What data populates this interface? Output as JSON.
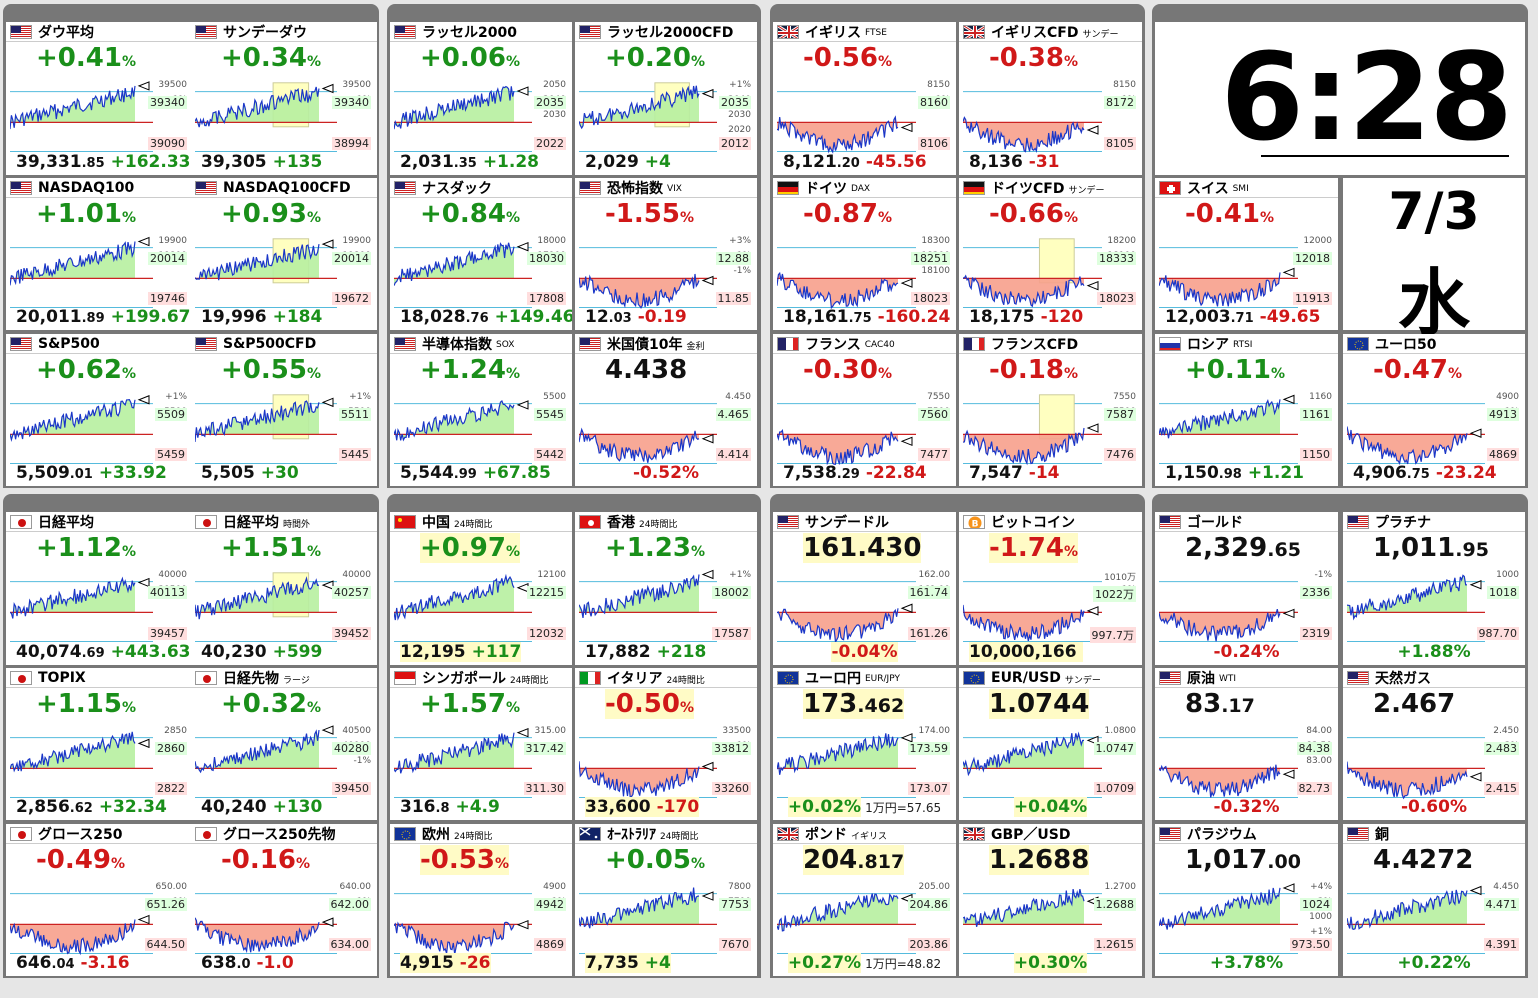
{
  "cells": [
    {
      "id": "dow",
      "title": "ダウ平均",
      "sub": "",
      "flag": "us",
      "mode": "pct",
      "pct": "+0.41",
      "dir": "up",
      "hi": "39340",
      "lo": "39090",
      "r": [
        "39500",
        "+1%"
      ],
      "price": "39,331",
      "dec": ".85",
      "chg": "+162.33",
      "cdir": "up",
      "sessions": [
        [
          0,
          1
        ],
        [
          1,
          1
        ],
        [
          1,
          1
        ],
        [
          1,
          1
        ],
        [
          1,
          0
        ],
        [
          1,
          0
        ],
        [
          1,
          0
        ],
        [
          1,
          0
        ]
      ]
    },
    {
      "id": "sdow",
      "title": "サンデーダウ",
      "sub": "",
      "flag": "us",
      "mode": "pct",
      "pct": "+0.34",
      "dir": "up",
      "hi": "39340",
      "lo": "38994",
      "r": [
        "39500",
        "+1%"
      ],
      "price": "39,305",
      "dec": "",
      "chg": "+135",
      "cdir": "up",
      "box": true,
      "sessions": []
    },
    {
      "id": "r2000",
      "title": "ラッセル2000",
      "sub": "",
      "flag": "us",
      "mode": "pct",
      "pct": "+0.06",
      "dir": "up",
      "hi": "2035",
      "lo": "2022",
      "r": [
        "2050",
        "2040",
        "2030"
      ],
      "price": "2,031",
      "dec": ".35",
      "chg": "+1.28",
      "cdir": "up"
    },
    {
      "id": "r2000c",
      "title": "ラッセル2000CFD",
      "sub": "",
      "flag": "us",
      "mode": "pct",
      "pct": "+0.20",
      "dir": "up",
      "hi": "2035",
      "lo": "2012",
      "r": [
        "+1%",
        "2040",
        "2030",
        "2020"
      ],
      "price": "2,029",
      "dec": "",
      "chg": "+4",
      "cdir": "up",
      "box": true
    },
    {
      "id": "ftse",
      "title": "イギリス",
      "sub": "FTSE",
      "flag": "uk",
      "mode": "pct",
      "pct": "-0.56",
      "dir": "down",
      "hi": "8160",
      "lo": "8106",
      "r": [
        "8150",
        "-1%"
      ],
      "price": "8,121",
      "dec": ".20",
      "chg": "-45.56",
      "cdir": "down"
    },
    {
      "id": "ftsec",
      "title": "イギリスCFD",
      "sub": "サンデー",
      "flag": "uk",
      "mode": "pct",
      "pct": "-0.38",
      "dir": "down",
      "hi": "8172",
      "lo": "8105",
      "r": [
        "8150",
        "-1%"
      ],
      "price": "8,136",
      "dec": "",
      "chg": "-31",
      "cdir": "down"
    },
    {
      "id": "ndq100",
      "title": "NASDAQ100",
      "sub": "",
      "flag": "us",
      "mode": "pct",
      "pct": "+1.01",
      "dir": "up",
      "hi": "20014",
      "lo": "19746",
      "r": [
        "19900",
        "19800"
      ],
      "price": "20,011",
      "dec": ".89",
      "chg": "+199.67",
      "cdir": "up"
    },
    {
      "id": "ndq100c",
      "title": "NASDAQ100CFD",
      "sub": "",
      "flag": "us",
      "mode": "pct",
      "pct": "+0.93",
      "dir": "up",
      "hi": "20014",
      "lo": "19672",
      "r": [
        "19900",
        "19800"
      ],
      "price": "19,996",
      "dec": "",
      "chg": "+184",
      "cdir": "up",
      "box": true
    },
    {
      "id": "nasdaq",
      "title": "ナスダック",
      "sub": "",
      "flag": "us",
      "mode": "pct",
      "pct": "+0.84",
      "dir": "up",
      "hi": "18030",
      "lo": "17808",
      "r": [
        "18000",
        "17900"
      ],
      "price": "18,028",
      "dec": ".76",
      "chg": "+149.46",
      "cdir": "up"
    },
    {
      "id": "vix",
      "title": "恐怖指数",
      "sub": "VIX",
      "flag": "us",
      "mode": "pct",
      "pct": "-1.55",
      "dir": "down",
      "hi": "12.88",
      "lo": "11.85",
      "r": [
        "+3%",
        "+1%",
        "-1%"
      ],
      "price": "12",
      "dec": ".03",
      "chg": "-0.19",
      "cdir": "down"
    },
    {
      "id": "dax",
      "title": "ドイツ",
      "sub": "DAX",
      "flag": "de",
      "mode": "pct",
      "pct": "-0.87",
      "dir": "down",
      "hi": "18251",
      "lo": "18023",
      "r": [
        "18300",
        "18200",
        "18100"
      ],
      "price": "18,161",
      "dec": ".75",
      "chg": "-160.24",
      "cdir": "down"
    },
    {
      "id": "daxc",
      "title": "ドイツCFD",
      "sub": "サンデー",
      "flag": "de",
      "mode": "pct",
      "pct": "-0.66",
      "dir": "down",
      "hi": "18333",
      "lo": "18023",
      "r": [
        "18200",
        "18100"
      ],
      "price": "18,175",
      "dec": "",
      "chg": "-120",
      "cdir": "down",
      "box": true
    },
    {
      "id": "smi",
      "title": "スイス",
      "sub": "SMI",
      "flag": "ch",
      "mode": "pct",
      "pct": "-0.41",
      "dir": "down",
      "hi": "12018",
      "lo": "11913",
      "r": [
        "12000"
      ],
      "price": "12,003",
      "dec": ".71",
      "chg": "-49.65",
      "cdir": "down"
    },
    {
      "id": "sp500",
      "title": "S&P500",
      "sub": "",
      "flag": "us",
      "mode": "pct",
      "pct": "+0.62",
      "dir": "up",
      "hi": "5509",
      "lo": "5459",
      "r": [
        "+1%",
        "5500"
      ],
      "price": "5,509",
      "dec": ".01",
      "chg": "+33.92",
      "cdir": "up"
    },
    {
      "id": "sp500c",
      "title": "S&P500CFD",
      "sub": "",
      "flag": "us",
      "mode": "pct",
      "pct": "+0.55",
      "dir": "up",
      "hi": "5511",
      "lo": "5445",
      "r": [
        "+1%",
        "5500"
      ],
      "price": "5,505",
      "dec": "",
      "chg": "+30",
      "cdir": "up",
      "box": true
    },
    {
      "id": "sox",
      "title": "半導体指数",
      "sub": "SOX",
      "flag": "us",
      "mode": "pct",
      "pct": "+1.24",
      "dir": "up",
      "hi": "5545",
      "lo": "5442",
      "r": [
        "5500"
      ],
      "price": "5,544",
      "dec": ".99",
      "chg": "+67.85",
      "cdir": "up"
    },
    {
      "id": "us10y",
      "title": "米国債10年",
      "sub": "金利",
      "flag": "us",
      "mode": "val",
      "val": "4.438",
      "vdec": "",
      "hi": "4.465",
      "lo": "4.414",
      "r": [
        "4.450"
      ],
      "foot": "-0.52%",
      "fdir": "down"
    },
    {
      "id": "cac",
      "title": "フランス",
      "sub": "CAC40",
      "flag": "fr",
      "mode": "pct",
      "pct": "-0.30",
      "dir": "down",
      "hi": "7560",
      "lo": "7477",
      "r": [
        "7550",
        "7500"
      ],
      "price": "7,538",
      "dec": ".29",
      "chg": "-22.84",
      "cdir": "down"
    },
    {
      "id": "cacc",
      "title": "フランスCFD",
      "sub": "",
      "flag": "fr",
      "mode": "pct",
      "pct": "-0.18",
      "dir": "down",
      "hi": "7587",
      "lo": "7476",
      "r": [
        "7550",
        "7500"
      ],
      "price": "7,547",
      "dec": "",
      "chg": "-14",
      "cdir": "down",
      "box": true
    },
    {
      "id": "rtsi",
      "title": "ロシア",
      "sub": "RTSI",
      "flag": "ru",
      "mode": "pct",
      "pct": "+0.11",
      "dir": "up",
      "hi": "1161",
      "lo": "1150",
      "r": [
        "1160"
      ],
      "price": "1,150",
      "dec": ".98",
      "chg": "+1.21",
      "cdir": "up"
    },
    {
      "id": "eu50",
      "title": "ユーロ50",
      "sub": "",
      "flag": "eu",
      "mode": "pct",
      "pct": "-0.47",
      "dir": "down",
      "hi": "4913",
      "lo": "4869",
      "r": [
        "4900",
        "-1%"
      ],
      "price": "4,906",
      "dec": ".75",
      "chg": "-23.24",
      "cdir": "down"
    },
    {
      "id": "nk",
      "title": "日経平均",
      "sub": "",
      "flag": "jp",
      "mode": "pct",
      "pct": "+1.12",
      "dir": "up",
      "hi": "40113",
      "lo": "39457",
      "r": [
        "40000",
        "39500"
      ],
      "price": "40,074",
      "dec": ".69",
      "chg": "+443.63",
      "cdir": "up"
    },
    {
      "id": "nkx",
      "title": "日経平均",
      "sub": "時間外",
      "flag": "jp",
      "mode": "pct",
      "pct": "+1.51",
      "dir": "up",
      "hi": "40257",
      "lo": "39452",
      "r": [
        "40000"
      ],
      "price": "40,230",
      "dec": "",
      "chg": "+599",
      "cdir": "up",
      "box": true
    },
    {
      "id": "cn",
      "title": "中国",
      "sub": "24時間比",
      "flag": "cn",
      "mode": "pct",
      "pct": "+0.97",
      "dir": "up",
      "hl": true,
      "hi": "12215",
      "lo": "12032",
      "r": [
        "12100"
      ],
      "price": "12,195",
      "dec": "",
      "chg": "+117",
      "cdir": "up",
      "bhl": true
    },
    {
      "id": "hk",
      "title": "香港",
      "sub": "24時間比",
      "flag": "hk",
      "mode": "pct",
      "pct": "+1.23",
      "dir": "up",
      "hi": "18002",
      "lo": "17587",
      "r": [
        "+1%"
      ],
      "price": "17,882",
      "dec": "",
      "chg": "+218",
      "cdir": "up"
    },
    {
      "id": "usdjpy",
      "title": "サンデードル",
      "sub": "",
      "flag": "us",
      "mode": "val",
      "val": "161.430",
      "vdec": "",
      "vhl": true,
      "hi": "161.74",
      "lo": "161.26",
      "r": [
        "162.00",
        "161.00"
      ],
      "foot": "-0.04%",
      "fdir": "down",
      "fhl": true
    },
    {
      "id": "btc",
      "title": "ビットコイン",
      "sub": "",
      "flag": "btc",
      "mode": "pct",
      "pct": "-1.74",
      "dir": "down",
      "hl": true,
      "hi": "1022万",
      "lo": "997.7万",
      "r": [
        "1010万",
        "-1%"
      ],
      "price": "10,000,166",
      "dec": "",
      "chg": "",
      "cdir": "down",
      "bhl": true
    },
    {
      "id": "gold",
      "title": "ゴールド",
      "sub": "",
      "flag": "us",
      "mode": "val",
      "val": "2,329",
      "vdec": ".65",
      "hi": "2336",
      "lo": "2319",
      "r": [
        "-1%"
      ],
      "foot": "-0.24%",
      "fdir": "down"
    },
    {
      "id": "plat",
      "title": "プラチナ",
      "sub": "",
      "flag": "us",
      "mode": "val",
      "val": "1,011",
      "vdec": ".95",
      "hi": "1018",
      "lo": "987.70",
      "r": [
        "1000"
      ],
      "foot": "+1.88%",
      "fdir": "up"
    },
    {
      "id": "topix",
      "title": "TOPIX",
      "sub": "",
      "flag": "jp",
      "mode": "pct",
      "pct": "+1.15",
      "dir": "up",
      "hi": "2860",
      "lo": "2822",
      "r": [
        "2850"
      ],
      "price": "2,856",
      "dec": ".62",
      "chg": "+32.34",
      "cdir": "up"
    },
    {
      "id": "nkf",
      "title": "日経先物",
      "sub": "ラージ",
      "flag": "jp",
      "mode": "pct",
      "pct": "+0.32",
      "dir": "up",
      "hi": "40280",
      "lo": "39450",
      "r": [
        "40500",
        "40000",
        "-1%"
      ],
      "price": "40,240",
      "dec": "",
      "chg": "+130",
      "cdir": "up"
    },
    {
      "id": "sg",
      "title": "シンガポール",
      "sub": "24時間比",
      "flag": "sg",
      "mode": "pct",
      "pct": "+1.57",
      "dir": "up",
      "hi": "317.42",
      "lo": "311.30",
      "r": [
        "315.00"
      ],
      "price": "316",
      "dec": ".8",
      "chg": "+4.9",
      "cdir": "up"
    },
    {
      "id": "it",
      "title": "イタリア",
      "sub": "24時間比",
      "flag": "it",
      "mode": "pct",
      "pct": "-0.50",
      "dir": "down",
      "hl": true,
      "hi": "33812",
      "lo": "33260",
      "r": [
        "33500",
        "-1%"
      ],
      "price": "33,600",
      "dec": "",
      "chg": "-170",
      "cdir": "down",
      "bhl": true
    },
    {
      "id": "eurjpy",
      "title": "ユーロ円",
      "sub": "EUR/JPY",
      "flag": "eu",
      "mode": "val",
      "val": "173",
      "vdec": ".462",
      "vhl": true,
      "hi": "173.59",
      "lo": "173.07",
      "r": [
        "174.00"
      ],
      "foot": "+0.02%",
      "fdir": "up",
      "fhl": true,
      "fext": "1万円=57.65"
    },
    {
      "id": "eurusd",
      "title": "EUR/USD",
      "sub": "サンデー",
      "flag": "eu",
      "mode": "val",
      "val": "1.0744",
      "vdec": "",
      "vhl": true,
      "hi": "1.0747",
      "lo": "1.0709",
      "r": [
        "1.0800"
      ],
      "foot": "+0.04%",
      "fdir": "up",
      "fhl": true
    },
    {
      "id": "oil",
      "title": "原油",
      "sub": "WTI",
      "flag": "us",
      "mode": "val",
      "val": "83",
      "vdec": ".17",
      "hi": "84.38",
      "lo": "82.73",
      "r": [
        "84.00",
        "83.50",
        "83.00"
      ],
      "foot": "-0.32%",
      "fdir": "down"
    },
    {
      "id": "gas",
      "title": "天然ガス",
      "sub": "",
      "flag": "us",
      "mode": "val",
      "val": "2.467",
      "vdec": "",
      "hi": "2.483",
      "lo": "2.415",
      "r": [
        "2.450",
        "-2%"
      ],
      "foot": "-0.60%",
      "fdir": "down"
    },
    {
      "id": "g250",
      "title": "グロース250",
      "sub": "",
      "flag": "jp",
      "mode": "pct",
      "pct": "-0.49",
      "dir": "down",
      "hi": "651.26",
      "lo": "644.50",
      "r": [
        "650.00",
        "-1%"
      ],
      "price": "646",
      "dec": ".04",
      "chg": "-3.16",
      "cdir": "down"
    },
    {
      "id": "g250f",
      "title": "グロース250先物",
      "sub": "",
      "flag": "jp",
      "mode": "pct",
      "pct": "-0.16",
      "dir": "down",
      "hi": "642.00",
      "lo": "634.00",
      "r": [
        "640.00",
        "-1%"
      ],
      "price": "638",
      "dec": ".0",
      "chg": "-1.0",
      "cdir": "down"
    },
    {
      "id": "eu",
      "title": "欧州",
      "sub": "24時間比",
      "flag": "eu",
      "mode": "pct",
      "pct": "-0.53",
      "dir": "down",
      "hl": true,
      "hi": "4942",
      "lo": "4869",
      "r": [
        "4900",
        "-1%"
      ],
      "price": "4,915",
      "dec": "",
      "chg": "-26",
      "cdir": "down",
      "bhl": true
    },
    {
      "id": "au",
      "title": "ｵｰｽﾄﾗﾘｱ",
      "sub": "24時間比",
      "flag": "au",
      "mode": "pct",
      "pct": "+0.05",
      "dir": "up",
      "hi": "7753",
      "lo": "7670",
      "r": [
        "7800",
        "7700"
      ],
      "price": "7,735",
      "dec": "",
      "chg": "+4",
      "cdir": "up",
      "bhl": true
    },
    {
      "id": "gbpjpy",
      "title": "ポンド",
      "sub": "イギリス",
      "flag": "uk",
      "mode": "val",
      "val": "204",
      "vdec": ".817",
      "vhl": true,
      "hi": "204.86",
      "lo": "203.86",
      "r": [
        "205.00"
      ],
      "foot": "+0.27%",
      "fdir": "up",
      "fhl": true,
      "fext": "1万円=48.82"
    },
    {
      "id": "gbpusd",
      "title": "GBP／USD",
      "sub": "",
      "flag": "uk",
      "mode": "val",
      "val": "1.2688",
      "vdec": "",
      "vhl": true,
      "hi": "1.2688",
      "lo": "1.2615",
      "r": [
        "1.2700"
      ],
      "foot": "+0.30%",
      "fdir": "up",
      "fhl": true
    },
    {
      "id": "pd",
      "title": "パラジウム",
      "sub": "",
      "flag": "us",
      "mode": "val",
      "val": "1,017",
      "vdec": ".00",
      "hi": "1024",
      "lo": "973.50",
      "r": [
        "+4%",
        "+3%",
        "1000",
        "+1%"
      ],
      "foot": "+3.78%",
      "fdir": "up"
    },
    {
      "id": "cu",
      "title": "銅",
      "sub": "",
      "flag": "us",
      "mode": "val",
      "val": "4.4272",
      "vdec": "",
      "hi": "4.471",
      "lo": "4.391",
      "r": [
        "4.450"
      ],
      "foot": "+0.22%",
      "fdir": "up"
    }
  ],
  "clock": {
    "time": "6:28",
    "date": "7/3",
    "weekday": "水"
  },
  "colors": {
    "up": "#1a8f1a",
    "down": "#d01818",
    "upFill": "#b7f0a0",
    "downFill": "#f7a08c"
  }
}
